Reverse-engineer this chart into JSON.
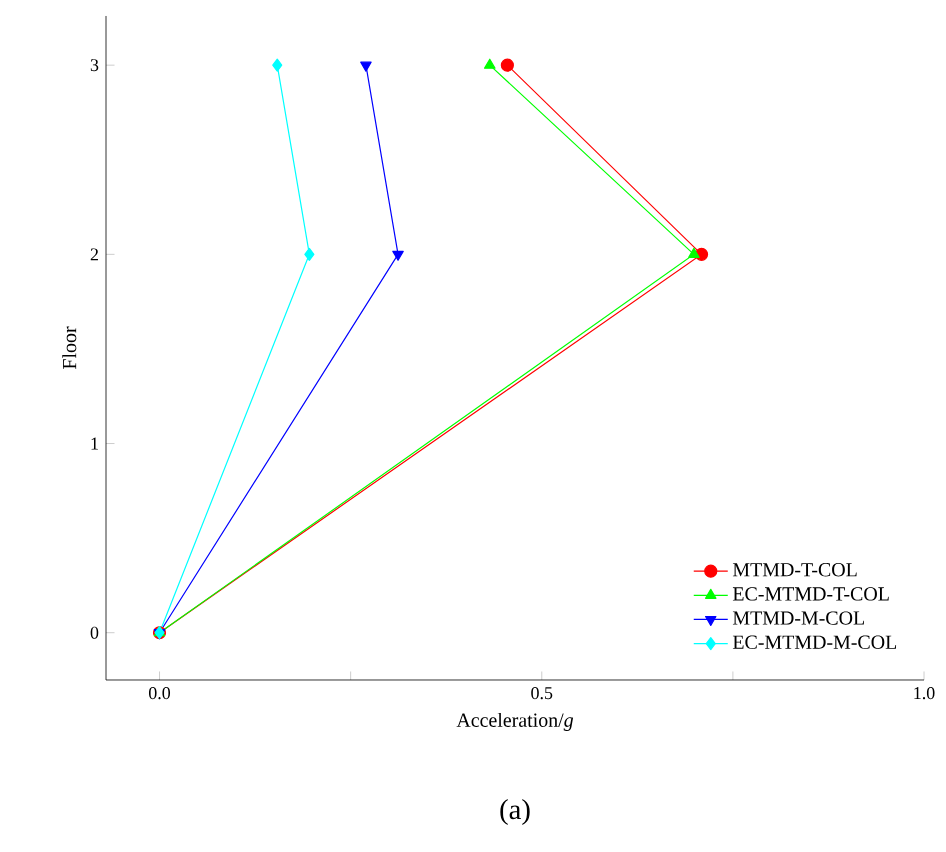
{
  "chart_data": {
    "type": "line",
    "xlabel": "Acceleration/*g*",
    "ylabel": "Floor",
    "annotations": [
      "(a)"
    ],
    "xlim": [
      -0.07,
      1.0
    ],
    "ylim": [
      -0.25,
      3.26
    ],
    "xticks": [
      {
        "value": 0,
        "label": "0.0"
      },
      {
        "value": 0.25,
        "label": null
      },
      {
        "value": 0.5,
        "label": "0.5"
      },
      {
        "value": 0.75,
        "label": null
      },
      {
        "value": 1.0,
        "label": "1.0"
      }
    ],
    "yticks": [
      0,
      1,
      2,
      3
    ],
    "grid": false,
    "legend": "bottom right",
    "series": [
      {
        "name": "MTMD-T-COL",
        "color": "#ff0000",
        "marker": "circle",
        "x": [
          0,
          0.709,
          0.455
        ],
        "values": [
          0,
          2,
          3
        ]
      },
      {
        "name": "EC-MTMD-T-COL",
        "color": "#00ff00",
        "marker": "triangle",
        "x": [
          0,
          0.699,
          0.432
        ],
        "values": [
          0,
          2,
          3
        ]
      },
      {
        "name": "MTMD-M-COL",
        "color": "#0000ff",
        "marker": "triangle-down",
        "x": [
          0,
          0.312,
          0.27
        ],
        "values": [
          0,
          2,
          3
        ]
      },
      {
        "name": "EC-MTMD-M-COL",
        "color": "#00ffff",
        "marker": "diamond",
        "x": [
          0,
          0.196,
          0.154
        ],
        "values": [
          0,
          2,
          3
        ]
      }
    ]
  }
}
